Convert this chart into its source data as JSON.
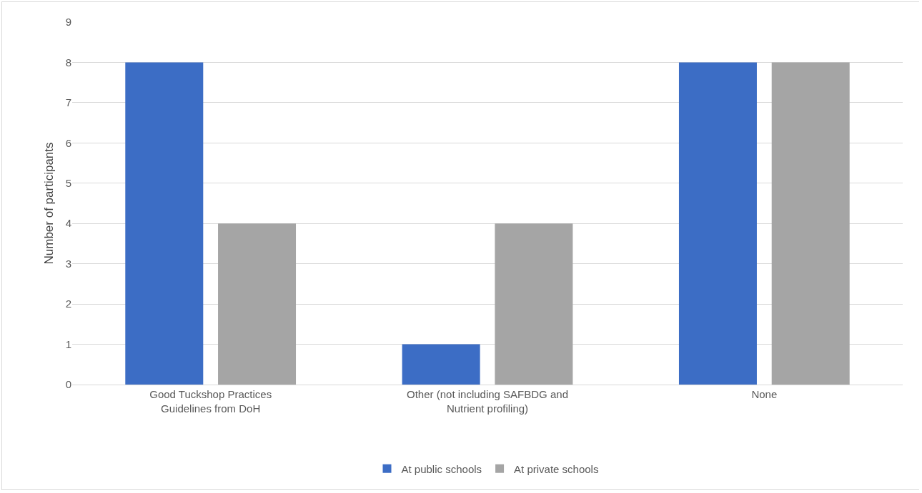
{
  "chart_data": {
    "type": "bar",
    "ylabel": "Number of participants",
    "categories": [
      "Good Tuckshop Practices Guidelines from DoH",
      "Other (not including SAFBDG and Nutrient profiling)",
      "None"
    ],
    "series": [
      {
        "name": "At public schools",
        "color": "#3c6dc5",
        "values": [
          8,
          1,
          8
        ]
      },
      {
        "name": "At private schools",
        "color": "#a5a5a5",
        "values": [
          4,
          4,
          8
        ]
      }
    ],
    "ylim": [
      0,
      9
    ],
    "yticks": [
      0,
      1,
      2,
      3,
      4,
      5,
      6,
      7,
      8,
      9
    ],
    "grid": "y",
    "legend": "bottom"
  }
}
